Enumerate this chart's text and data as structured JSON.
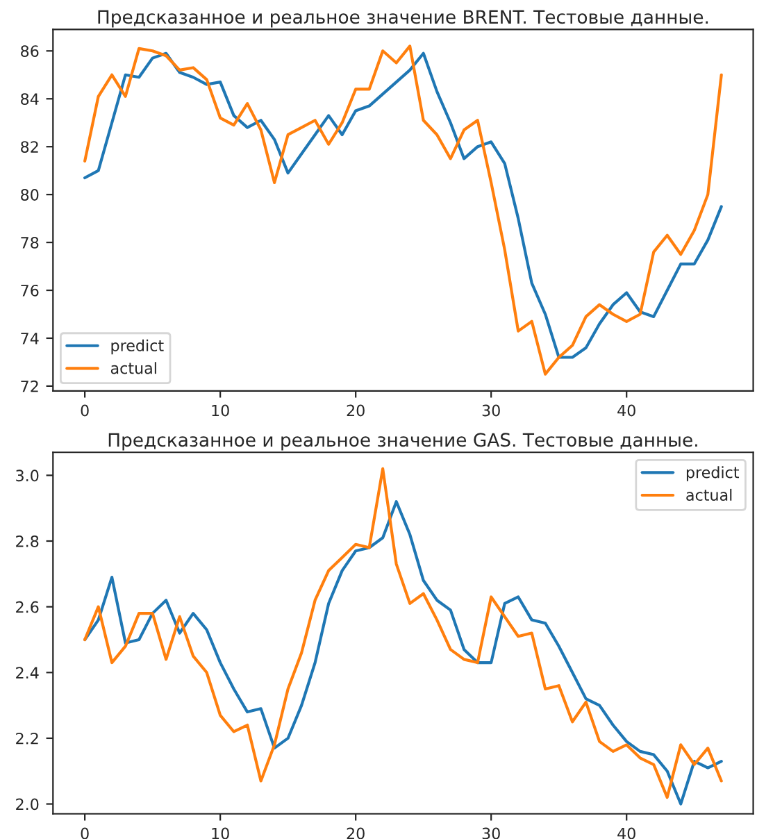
{
  "chart_data": [
    {
      "type": "line",
      "title": "Предсказанное и реальное значение BRENT. Тестовые данные.",
      "x": [
        0,
        1,
        2,
        3,
        4,
        5,
        6,
        7,
        8,
        9,
        10,
        11,
        12,
        13,
        14,
        15,
        16,
        17,
        18,
        19,
        20,
        21,
        22,
        23,
        24,
        25,
        26,
        27,
        28,
        29,
        30,
        31,
        32,
        33,
        34,
        35,
        36,
        37,
        38,
        39,
        40,
        41,
        42,
        43,
        44,
        45,
        46,
        47
      ],
      "series": [
        {
          "name": "predict",
          "color": "#1f77b4",
          "values": [
            80.7,
            81.0,
            83.0,
            85.0,
            84.9,
            85.7,
            85.9,
            85.1,
            84.9,
            84.6,
            84.7,
            83.3,
            82.8,
            83.1,
            82.3,
            80.9,
            81.7,
            82.5,
            83.3,
            82.5,
            83.5,
            83.7,
            84.2,
            84.7,
            85.2,
            85.9,
            84.3,
            83.0,
            81.5,
            82.0,
            82.2,
            81.3,
            79.0,
            76.3,
            75.0,
            73.2,
            73.2,
            73.6,
            74.6,
            75.4,
            75.9,
            75.1,
            74.9,
            76.0,
            77.1,
            77.1,
            78.1,
            79.5
          ]
        },
        {
          "name": "actual",
          "color": "#ff7f0e",
          "values": [
            81.4,
            84.1,
            85.0,
            84.1,
            86.1,
            86.0,
            85.8,
            85.2,
            85.3,
            84.8,
            83.2,
            82.9,
            83.8,
            82.7,
            80.5,
            82.5,
            82.8,
            83.1,
            82.1,
            83.0,
            84.4,
            84.4,
            86.0,
            85.5,
            86.2,
            83.1,
            82.5,
            81.5,
            82.7,
            83.1,
            80.5,
            77.7,
            74.3,
            74.7,
            72.5,
            73.2,
            73.7,
            74.9,
            75.4,
            75.0,
            74.7,
            75.0,
            77.6,
            78.3,
            77.5,
            78.5,
            80.0,
            85.0
          ]
        }
      ],
      "xlim": [
        -2.35,
        49.35
      ],
      "xticks": [
        0,
        10,
        20,
        30,
        40
      ],
      "ylim": [
        71.8,
        86.9
      ],
      "yticks": [
        72,
        74,
        76,
        78,
        80,
        82,
        84,
        86
      ],
      "legend": "lower left",
      "grid": false
    },
    {
      "type": "line",
      "title": "Предсказанное и реальное значение GAS. Тестовые данные.",
      "x": [
        0,
        1,
        2,
        3,
        4,
        5,
        6,
        7,
        8,
        9,
        10,
        11,
        12,
        13,
        14,
        15,
        16,
        17,
        18,
        19,
        20,
        21,
        22,
        23,
        24,
        25,
        26,
        27,
        28,
        29,
        30,
        31,
        32,
        33,
        34,
        35,
        36,
        37,
        38,
        39,
        40,
        41,
        42,
        43,
        44,
        45,
        46,
        47
      ],
      "series": [
        {
          "name": "predict",
          "color": "#1f77b4",
          "values": [
            2.5,
            2.56,
            2.69,
            2.49,
            2.5,
            2.58,
            2.62,
            2.52,
            2.58,
            2.53,
            2.43,
            2.35,
            2.28,
            2.29,
            2.17,
            2.2,
            2.3,
            2.43,
            2.61,
            2.71,
            2.77,
            2.78,
            2.81,
            2.92,
            2.82,
            2.68,
            2.62,
            2.59,
            2.47,
            2.43,
            2.43,
            2.61,
            2.63,
            2.56,
            2.55,
            2.48,
            2.4,
            2.32,
            2.3,
            2.24,
            2.19,
            2.16,
            2.15,
            2.1,
            2.0,
            2.13,
            2.11,
            2.13
          ]
        },
        {
          "name": "actual",
          "color": "#ff7f0e",
          "values": [
            2.5,
            2.6,
            2.43,
            2.48,
            2.58,
            2.58,
            2.44,
            2.57,
            2.45,
            2.4,
            2.27,
            2.22,
            2.24,
            2.07,
            2.18,
            2.35,
            2.46,
            2.62,
            2.71,
            2.75,
            2.79,
            2.78,
            3.02,
            2.73,
            2.61,
            2.64,
            2.56,
            2.47,
            2.44,
            2.43,
            2.63,
            2.57,
            2.51,
            2.52,
            2.35,
            2.36,
            2.25,
            2.31,
            2.19,
            2.16,
            2.18,
            2.14,
            2.12,
            2.02,
            2.18,
            2.12,
            2.17,
            2.07
          ]
        }
      ],
      "xlim": [
        -2.35,
        49.35
      ],
      "xticks": [
        0,
        10,
        20,
        30,
        40
      ],
      "ylim": [
        1.97,
        3.07
      ],
      "yticks": [
        {
          "value": 2,
          "label": "2.0"
        },
        {
          "value": 2.2,
          "label": "2.2"
        },
        {
          "value": 2.4,
          "label": "2.4"
        },
        {
          "value": 2.6,
          "label": "2.6"
        },
        {
          "value": 2.8,
          "label": "2.8"
        },
        {
          "value": 3,
          "label": "3.0"
        }
      ],
      "legend": "upper right",
      "grid": false
    }
  ]
}
